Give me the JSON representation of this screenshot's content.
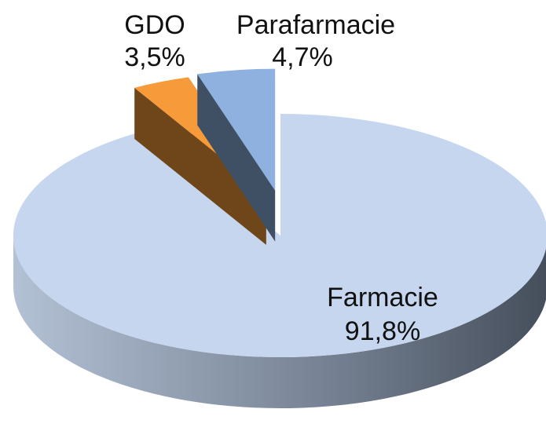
{
  "chart_data": {
    "type": "pie",
    "categories": [
      "Farmacie",
      "GDO",
      "Parafarmacie"
    ],
    "values": [
      91.8,
      3.5,
      4.7
    ],
    "value_labels": [
      "91,8%",
      "3,5%",
      "4,7%"
    ],
    "colors": [
      "#c5d6ee",
      "#f79a3a",
      "#8eb1df"
    ]
  }
}
